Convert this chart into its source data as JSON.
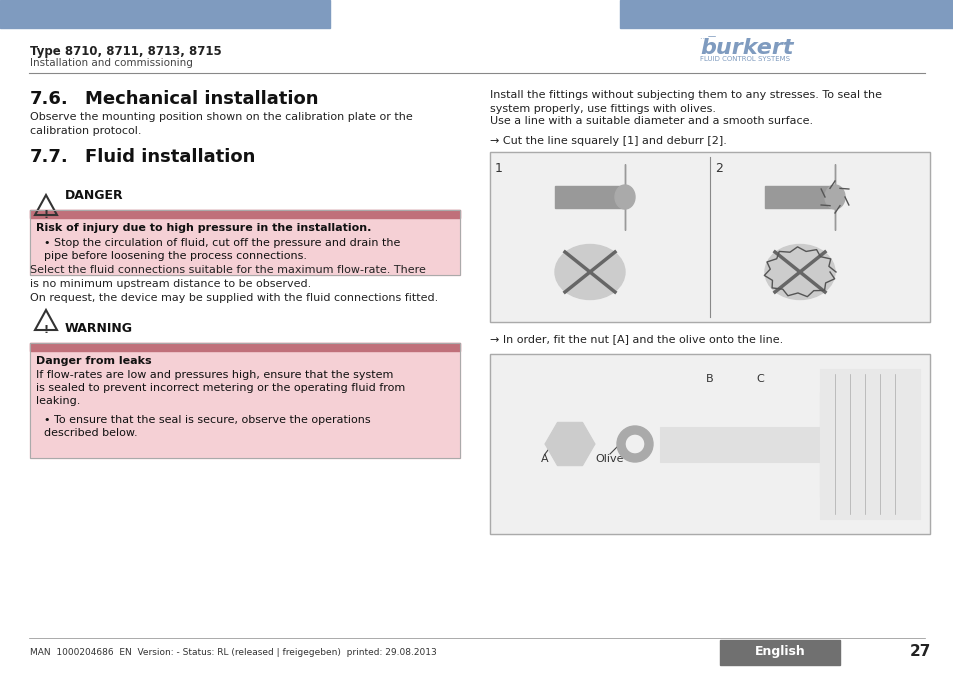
{
  "bg_color": "#ffffff",
  "header_bar_color": "#7f9bbf",
  "header_bar2_color": "#7f9bbf",
  "header_left_title": "Type 8710, 8711, 8713, 8715",
  "header_left_sub": "Installation and commissioning",
  "burkert_color": "#7f9bbf",
  "section1_num": "7.6.",
  "section1_title": "Mechanical installation",
  "section1_body": "Observe the mounting position shown on the calibration plate or the\ncalibration protocol.",
  "section2_num": "7.7.",
  "section2_title": "Fluid installation",
  "danger_label": "DANGER",
  "danger_bar_color": "#c0707a",
  "danger_bg_color": "#f5d0d5",
  "danger_bold_text": "Risk of injury due to high pressure in the installation.",
  "danger_bullet": "Stop the circulation of fluid, cut off the pressure and drain the\npipe before loosening the process connections.",
  "select_text": "Select the fluid connections suitable for the maximum flow-rate. There\nis no minimum upstream distance to be observed.",
  "on_request_text": "On request, the device may be supplied with the fluid connections fitted.",
  "warning_label": "WARNING",
  "warning_bar_color": "#c0707a",
  "warning_bg_color": "#f5d0d5",
  "warning_bold_text": "Danger from leaks",
  "warning_body": "If flow-rates are low and pressures high, ensure that the system\nis sealed to prevent incorrect metering or the operating fluid from\nleaking.",
  "warning_bullet": "To ensure that the seal is secure, observe the operations\ndescribed below.",
  "right_text1": "Install the fittings without subjecting them to any stresses. To seal the\nsystem properly, use fittings with olives.",
  "right_text2": "Use a line with a suitable diameter and a smooth surface.",
  "arrow_text1": "→ Cut the line squarely [1] and deburr [2].",
  "arrow_text2": "→ In order, fit the nut [A] and the olive onto the line.",
  "footer_text": "MAN  1000204686  EN  Version: - Status: RL (released | freigegeben)  printed: 29.08.2013",
  "footer_english": "English",
  "footer_english_bg": "#707070",
  "footer_page": "27",
  "line_color": "#555555",
  "box_border_color": "#aaaaaa",
  "image_bg": "#f0f0f0",
  "image_border": "#aaaaaa"
}
